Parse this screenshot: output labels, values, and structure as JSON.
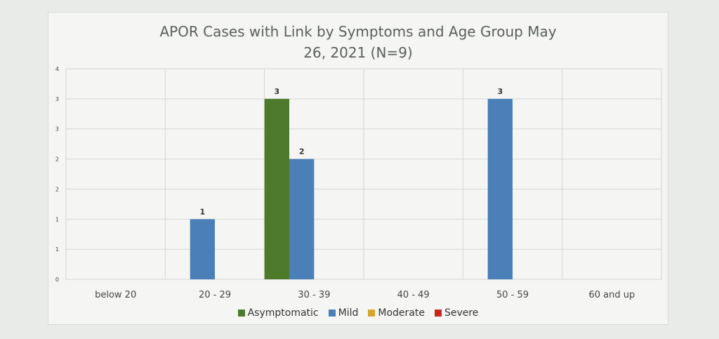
{
  "chart_data": {
    "type": "bar",
    "title_line1": "APOR Cases with Link by Symptoms and Age Group May",
    "title_line2": "26, 2021 (N=9)",
    "xlabel": "",
    "ylabel": "",
    "categories": [
      "below 20",
      "20 - 29",
      "30 - 39",
      "40 - 49",
      "50 - 59",
      "60 and up"
    ],
    "y_tick_labels": [
      "0",
      "1",
      "1",
      "2",
      "2",
      "3",
      "3",
      "4"
    ],
    "ylim": [
      0,
      3.5
    ],
    "grid": true,
    "legend_position": "bottom",
    "series": [
      {
        "name": "Asymptomatic",
        "color": "#4e7a2c",
        "values": [
          0,
          0,
          3,
          0,
          0,
          0
        ]
      },
      {
        "name": "Mild",
        "color": "#4a7fb8",
        "values": [
          0,
          1,
          2,
          0,
          3,
          0
        ]
      },
      {
        "name": "Moderate",
        "color": "#d8a52a",
        "values": [
          0,
          0,
          0,
          0,
          0,
          0
        ]
      },
      {
        "name": "Severe",
        "color": "#c8281e",
        "values": [
          0,
          0,
          0,
          0,
          0,
          0
        ]
      }
    ]
  }
}
